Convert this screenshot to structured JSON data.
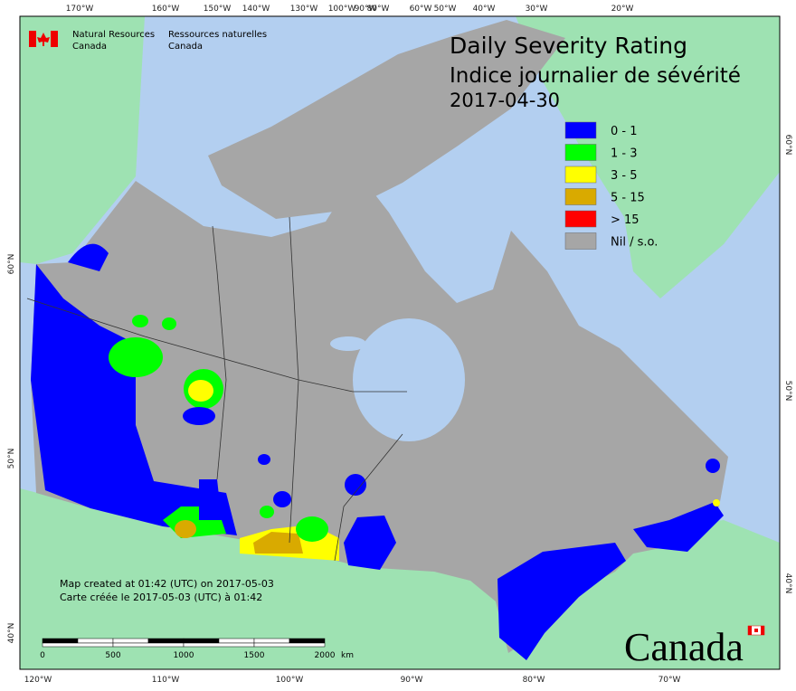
{
  "agency": {
    "en": [
      "Natural Resources",
      "Canada"
    ],
    "fr": [
      "Ressources naturelles",
      "Canada"
    ]
  },
  "title": [
    "Daily Severity Rating",
    "Indice journalier de sévérité",
    "2017-04-30"
  ],
  "legend": [
    {
      "label": "0 - 1",
      "color": "#0000ff"
    },
    {
      "label": "1 - 3",
      "color": "#00ff00"
    },
    {
      "label": "3 - 5",
      "color": "#ffff00"
    },
    {
      "label": "5 - 15",
      "color": "#d9aa00"
    },
    {
      "label": "> 15",
      "color": "#ff0000"
    },
    {
      "label": "Nil / s.o.",
      "color": "#a6a6a6"
    }
  ],
  "graticule": {
    "top": [
      "170°W",
      "160°W",
      "150°W",
      "140°W",
      "130°W",
      "100°W",
      "90°W",
      "80°W",
      "60°W",
      "50°W",
      "40°W",
      "30°W",
      "20°W"
    ],
    "bottom": [
      "120°W",
      "110°W",
      "100°W",
      "90°W",
      "80°W",
      "70°W"
    ],
    "left": [
      "60°N",
      "50°N",
      "40°N"
    ],
    "right": [
      "60°N",
      "50°N",
      "40°N"
    ]
  },
  "credits": [
    "Map created at 01:42 (UTC) on 2017-05-03",
    "Carte créée le 2017-05-03 (UTC) à 01:42"
  ],
  "scale_bar": {
    "ticks": [
      0,
      500,
      1000,
      1500,
      2000
    ],
    "unit": "km"
  },
  "wordmark": "Canada"
}
